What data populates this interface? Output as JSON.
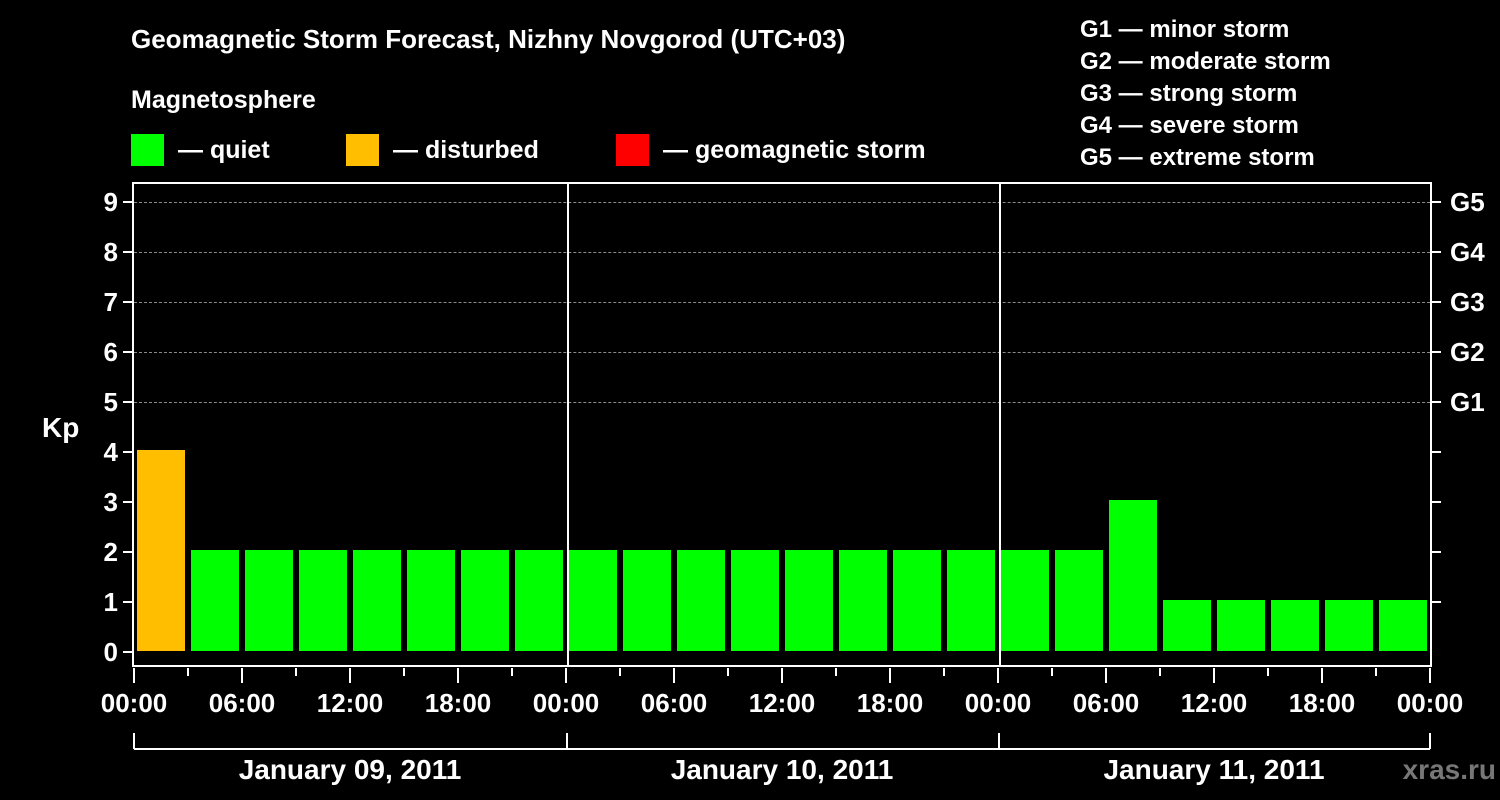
{
  "header": {
    "title": "Geomagnetic Storm Forecast, Nizhny Novgorod (UTC+03)",
    "subtitle": "Magnetosphere"
  },
  "legend": [
    {
      "label": "— quiet",
      "color": "#00ff00"
    },
    {
      "label": "— disturbed",
      "color": "#ffbf00"
    },
    {
      "label": "— geomagnetic storm",
      "color": "#ff0000"
    }
  ],
  "g_legend": [
    "G1 — minor storm",
    "G2 — moderate storm",
    "G3 — strong storm",
    "G4 — severe storm",
    "G5 — extreme storm"
  ],
  "watermark": "xras.ru",
  "chart_data": {
    "type": "bar",
    "title": "Geomagnetic Storm Forecast, Nizhny Novgorod (UTC+03)",
    "xlabel": "",
    "ylabel": "Kp",
    "ylim": [
      0,
      9
    ],
    "yticks": [
      "0",
      "1",
      "2",
      "3",
      "4",
      "5",
      "6",
      "7",
      "8",
      "9"
    ],
    "right_axis_labels": [
      {
        "kp": 5,
        "label": "G1"
      },
      {
        "kp": 6,
        "label": "G2"
      },
      {
        "kp": 7,
        "label": "G3"
      },
      {
        "kp": 8,
        "label": "G4"
      },
      {
        "kp": 9,
        "label": "G5"
      }
    ],
    "grid": "dashed horizontal at Kp 5-9",
    "x_tick_labels": [
      "00:00",
      "06:00",
      "12:00",
      "18:00",
      "00:00",
      "06:00",
      "12:00",
      "18:00",
      "00:00",
      "06:00",
      "12:00",
      "18:00",
      "00:00"
    ],
    "days": [
      "January 09, 2011",
      "January 10, 2011",
      "January 11, 2011"
    ],
    "interval_hours": 3,
    "categories": [
      "Jan 09 00-03",
      "Jan 09 03-06",
      "Jan 09 06-09",
      "Jan 09 09-12",
      "Jan 09 12-15",
      "Jan 09 15-18",
      "Jan 09 18-21",
      "Jan 09 21-24",
      "Jan 10 00-03",
      "Jan 10 03-06",
      "Jan 10 06-09",
      "Jan 10 09-12",
      "Jan 10 12-15",
      "Jan 10 15-18",
      "Jan 10 18-21",
      "Jan 10 21-24",
      "Jan 11 00-03",
      "Jan 11 03-06",
      "Jan 11 06-09",
      "Jan 11 09-12",
      "Jan 11 12-15",
      "Jan 11 15-18",
      "Jan 11 18-21",
      "Jan 11 21-24"
    ],
    "values": [
      4,
      2,
      2,
      2,
      2,
      2,
      2,
      2,
      2,
      2,
      2,
      2,
      2,
      2,
      2,
      2,
      2,
      2,
      3,
      1,
      1,
      1,
      1,
      1
    ],
    "status": [
      "disturbed",
      "quiet",
      "quiet",
      "quiet",
      "quiet",
      "quiet",
      "quiet",
      "quiet",
      "quiet",
      "quiet",
      "quiet",
      "quiet",
      "quiet",
      "quiet",
      "quiet",
      "quiet",
      "quiet",
      "quiet",
      "quiet",
      "quiet",
      "quiet",
      "quiet",
      "quiet",
      "quiet"
    ],
    "colors": {
      "quiet": "#00ff00",
      "disturbed": "#ffbf00",
      "storm": "#ff0000"
    }
  }
}
